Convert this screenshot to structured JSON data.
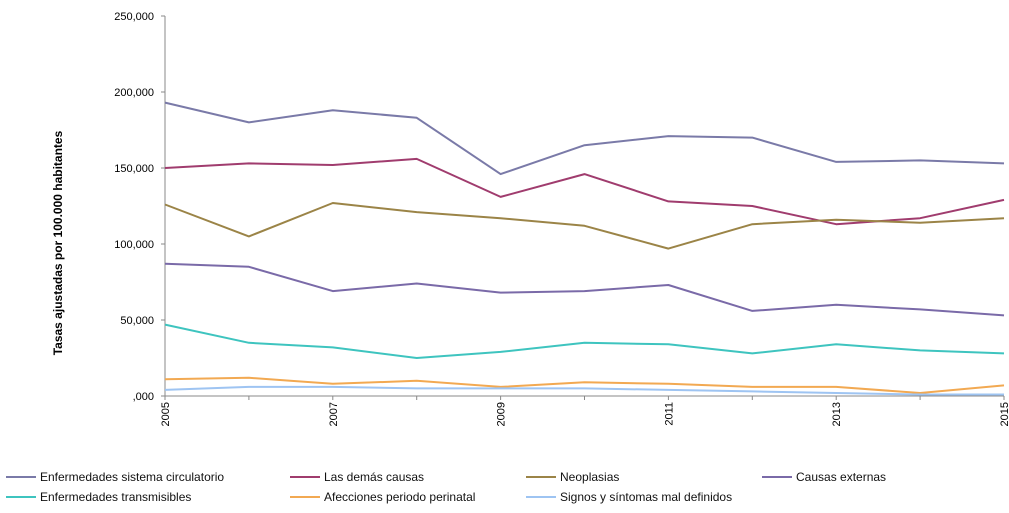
{
  "chart_data": {
    "type": "line",
    "title": "",
    "xlabel": "",
    "ylabel": "Tasas ajustadas por 100.000 habitantes",
    "x": [
      2005,
      2006,
      2007,
      2008,
      2009,
      2010,
      2011,
      2012,
      2013,
      2014,
      2015
    ],
    "x_tick_labels": [
      "2005",
      "2007",
      "2009",
      "2011",
      "2013",
      "2015"
    ],
    "y_tick_labels": [
      ",000",
      "50,000",
      "100,000",
      "150,000",
      "200,000",
      "250,000"
    ],
    "ylim": [
      0,
      250
    ],
    "grid": false,
    "legend_position": "bottom",
    "series": [
      {
        "name": "Enfermedades sistema circulatorio",
        "color": "#7a7aa8",
        "values": [
          193,
          180,
          188,
          183,
          146,
          165,
          171,
          170,
          154,
          155,
          153
        ]
      },
      {
        "name": "Las demás causas",
        "color": "#a03c6e",
        "values": [
          150,
          153,
          152,
          156,
          131,
          146,
          128,
          125,
          113,
          117,
          129
        ]
      },
      {
        "name": "Neoplasias",
        "color": "#9b8447",
        "values": [
          126,
          105,
          127,
          121,
          117,
          112,
          97,
          113,
          116,
          114,
          117
        ]
      },
      {
        "name": "Causas externas",
        "color": "#7a6aa8",
        "values": [
          87,
          85,
          69,
          74,
          68,
          69,
          73,
          56,
          60,
          57,
          53
        ]
      },
      {
        "name": "Enfermedades transmisibles",
        "color": "#3ec4bf",
        "values": [
          47,
          35,
          32,
          25,
          29,
          35,
          34,
          28,
          34,
          30,
          28
        ]
      },
      {
        "name": "Afecciones periodo perinatal",
        "color": "#f2a952",
        "values": [
          11,
          12,
          8,
          10,
          6,
          9,
          8,
          6,
          6,
          2,
          7
        ]
      },
      {
        "name": "Signos y síntomas mal definidos",
        "color": "#9ec4f2",
        "values": [
          4,
          6,
          6,
          5,
          5,
          5,
          4,
          3,
          2,
          1,
          1
        ]
      }
    ]
  }
}
